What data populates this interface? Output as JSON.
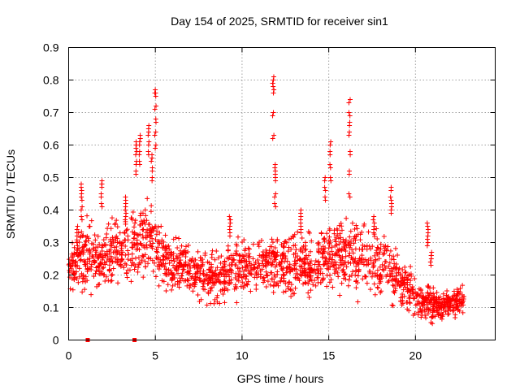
{
  "chart_data": {
    "type": "scatter",
    "title": "Day 154 of 2025, SRMTID for receiver sin1",
    "xlabel": "GPS time / hours",
    "ylabel": "SRMTID / TECUs",
    "xlim": [
      0,
      24.6
    ],
    "ylim": [
      0,
      0.9
    ],
    "xticks": [
      0,
      5,
      10,
      15,
      20
    ],
    "xtick_labels": [
      "0",
      "5",
      "10",
      "15",
      "20"
    ],
    "yticks": [
      0,
      0.1,
      0.2,
      0.3,
      0.4,
      0.5,
      0.6,
      0.7,
      0.8,
      0.9
    ],
    "ytick_labels": [
      "0",
      "0.1",
      "0.2",
      "0.3",
      "0.4",
      "0.5",
      "0.6",
      "0.7",
      "0.8",
      "0.9"
    ],
    "grid": true,
    "marker": "+",
    "color": "#ff0000",
    "envelope": {
      "description": "Approximate per-interval range of the dense '+' scatter read from the figure",
      "x_start": 0.0,
      "x_end": 22.8,
      "x_step": 0.5,
      "low": [
        0.12,
        0.13,
        0.11,
        0.12,
        0.13,
        0.15,
        0.14,
        0.14,
        0.15,
        0.16,
        0.15,
        0.12,
        0.12,
        0.13,
        0.12,
        0.1,
        0.07,
        0.07,
        0.08,
        0.08,
        0.1,
        0.1,
        0.11,
        0.12,
        0.11,
        0.1,
        0.11,
        0.12,
        0.11,
        0.11,
        0.12,
        0.12,
        0.13,
        0.11,
        0.11,
        0.1,
        0.1,
        0.09,
        0.08,
        0.07,
        0.05,
        0.04,
        0.04,
        0.05,
        0.05,
        0.06
      ],
      "high": [
        0.34,
        0.36,
        0.4,
        0.37,
        0.38,
        0.4,
        0.41,
        0.44,
        0.46,
        0.48,
        0.44,
        0.36,
        0.34,
        0.33,
        0.31,
        0.31,
        0.3,
        0.31,
        0.32,
        0.37,
        0.35,
        0.33,
        0.36,
        0.33,
        0.36,
        0.36,
        0.35,
        0.36,
        0.35,
        0.38,
        0.4,
        0.41,
        0.39,
        0.4,
        0.4,
        0.38,
        0.37,
        0.36,
        0.28,
        0.26,
        0.22,
        0.2,
        0.18,
        0.16,
        0.17,
        0.18
      ]
    },
    "highlights": [
      {
        "x": 0.5,
        "values": [
          0.28,
          0.3,
          0.33,
          0.35
        ]
      },
      {
        "x": 0.75,
        "values": [
          0.38,
          0.41,
          0.44,
          0.46,
          0.48
        ]
      },
      {
        "x": 1.9,
        "values": [
          0.42,
          0.45,
          0.48,
          0.49
        ]
      },
      {
        "x": 3.3,
        "values": [
          0.38,
          0.4,
          0.42,
          0.44
        ]
      },
      {
        "x": 3.9,
        "values": [
          0.52,
          0.55,
          0.58,
          0.6,
          0.61
        ]
      },
      {
        "x": 4.1,
        "values": [
          0.55,
          0.58,
          0.61,
          0.63
        ]
      },
      {
        "x": 4.6,
        "values": [
          0.58,
          0.61,
          0.64,
          0.66
        ]
      },
      {
        "x": 4.8,
        "values": [
          0.5,
          0.53,
          0.56,
          0.57
        ]
      },
      {
        "x": 5.0,
        "values": [
          0.6,
          0.64,
          0.68,
          0.72,
          0.76,
          0.77
        ]
      },
      {
        "x": 9.3,
        "values": [
          0.33,
          0.35,
          0.37,
          0.38
        ]
      },
      {
        "x": 11.8,
        "values": [
          0.63,
          0.7,
          0.77,
          0.79,
          0.8,
          0.81
        ]
      },
      {
        "x": 11.9,
        "values": [
          0.42,
          0.45,
          0.5,
          0.52,
          0.54
        ]
      },
      {
        "x": 13.4,
        "values": [
          0.34,
          0.36,
          0.38,
          0.4
        ]
      },
      {
        "x": 14.8,
        "values": [
          0.44,
          0.47,
          0.5
        ]
      },
      {
        "x": 15.1,
        "values": [
          0.5,
          0.54,
          0.58,
          0.61
        ]
      },
      {
        "x": 16.2,
        "values": [
          0.45,
          0.52,
          0.58,
          0.64,
          0.67,
          0.7,
          0.74
        ]
      },
      {
        "x": 17.6,
        "values": [
          0.34,
          0.36,
          0.38
        ]
      },
      {
        "x": 18.6,
        "values": [
          0.4,
          0.42,
          0.44,
          0.47
        ]
      },
      {
        "x": 20.7,
        "values": [
          0.3,
          0.32,
          0.34,
          0.36
        ]
      },
      {
        "x": 20.9,
        "values": [
          0.24,
          0.26,
          0.27
        ]
      }
    ],
    "zero_markers": [
      {
        "x": 1.1,
        "y": 0.0
      },
      {
        "x": 3.8,
        "y": 0.0
      }
    ],
    "point_count": 1900
  }
}
